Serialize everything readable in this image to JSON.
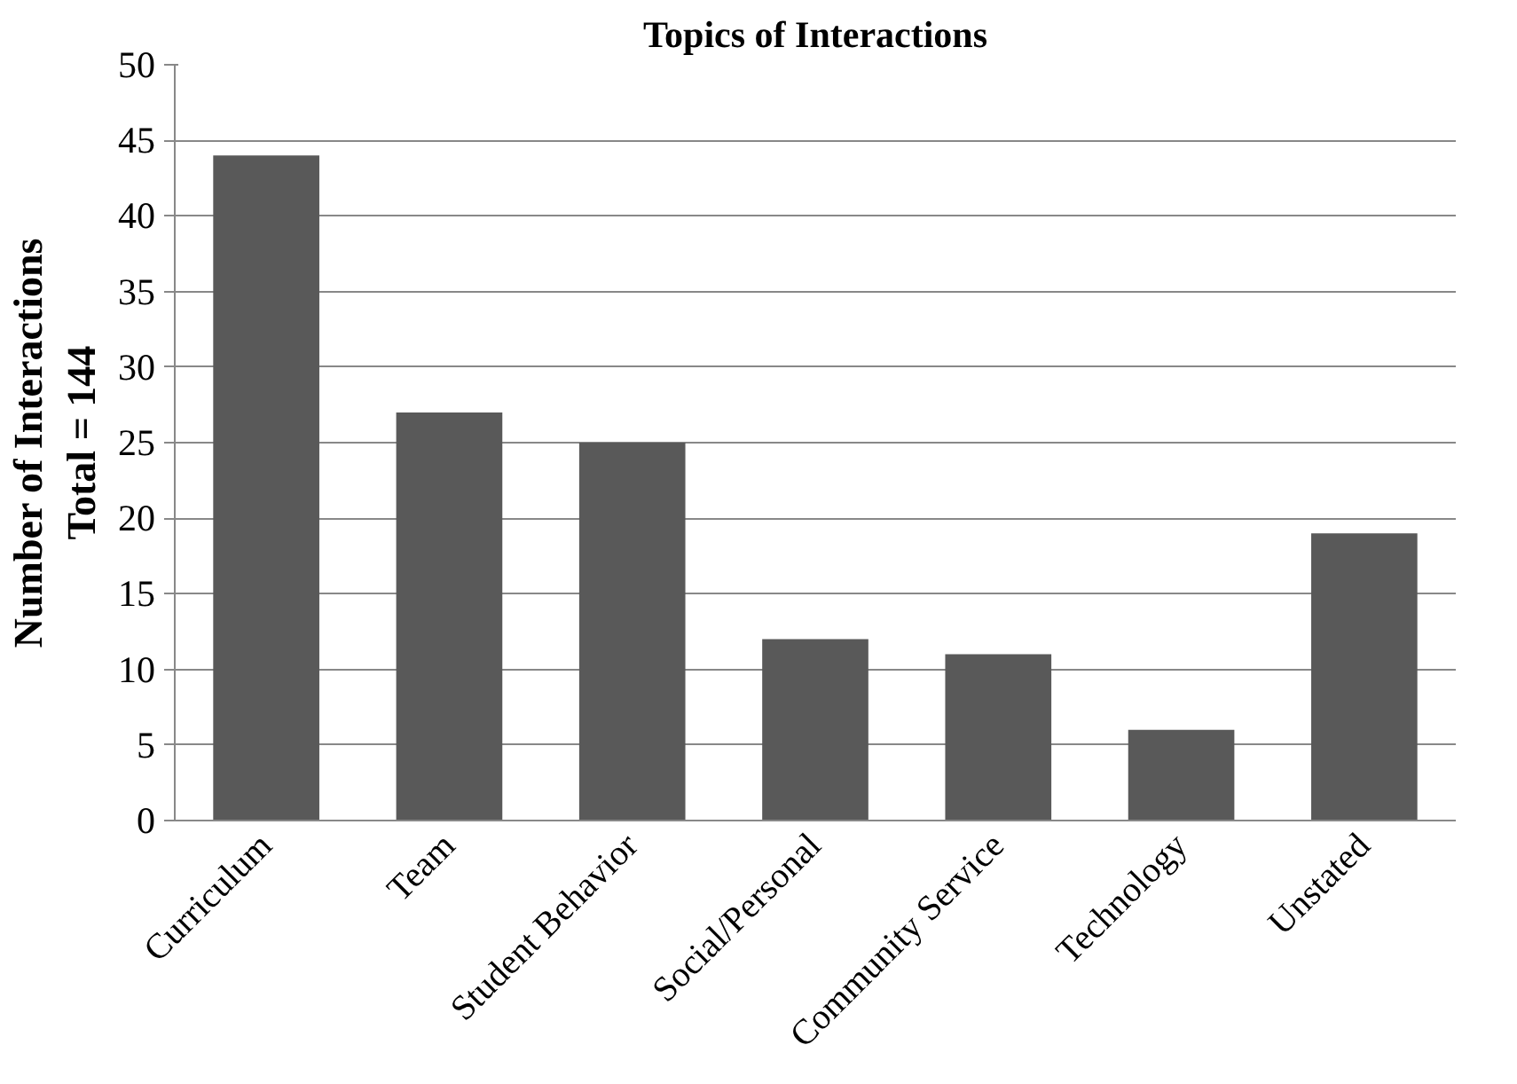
{
  "chart_data": {
    "type": "bar",
    "title": "Topics of Interactions",
    "ylabel": "Number of Interactions\nTotal = 144",
    "categories": [
      "Curriculum",
      "Team",
      "Student Behavior",
      "Social/Personal",
      "Community Service",
      "Technology",
      "Unstated"
    ],
    "values": [
      44,
      27,
      25,
      12,
      11,
      6,
      19
    ],
    "color": "#595959",
    "ylim": [
      0,
      50
    ],
    "yticks": [
      0,
      5,
      10,
      15,
      20,
      25,
      30,
      35,
      40,
      45,
      50
    ],
    "grid": "y"
  }
}
